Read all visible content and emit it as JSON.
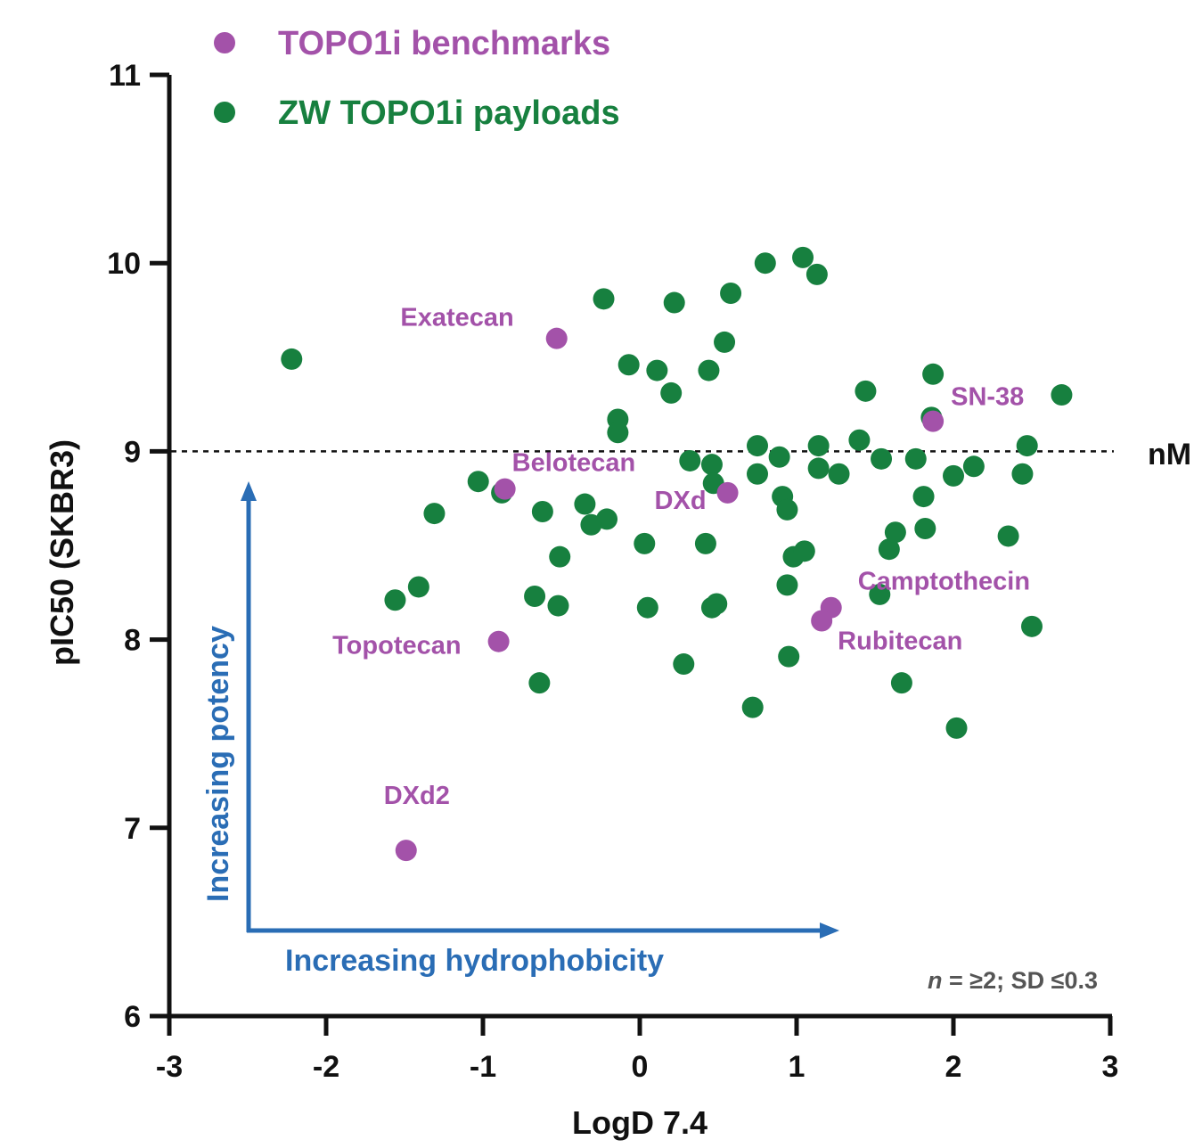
{
  "colors": {
    "benchmark": "#a352a9",
    "payload": "#17803f",
    "arrow": "#2a6db5",
    "axis": "#111111"
  },
  "chart_data": {
    "type": "scatter",
    "title": "",
    "xlabel": "LogD 7.4",
    "ylabel": "pIC50 (SKBR3)",
    "xlim": [
      -3,
      3
    ],
    "ylim": [
      6,
      11
    ],
    "x_ticks": [
      "-3",
      "-2",
      "-1",
      "0",
      "1",
      "2",
      "3"
    ],
    "y_ticks": [
      "6",
      "7",
      "8",
      "9",
      "10",
      "11"
    ],
    "legend": {
      "placement": "top-left",
      "entries": [
        "TOPO1i benchmarks",
        "ZW TOPO1i payloads"
      ]
    },
    "reference_line": {
      "y": 9,
      "label": "nM",
      "style": "dotted"
    },
    "series": [
      {
        "name": "TOPO1i benchmarks",
        "color": "#a352a9",
        "points": [
          {
            "x": -0.53,
            "y": 9.6,
            "label": "Exatecan"
          },
          {
            "x": 1.87,
            "y": 9.16,
            "label": "SN-38"
          },
          {
            "x": -0.86,
            "y": 8.8,
            "label": "Belotecan"
          },
          {
            "x": 0.56,
            "y": 8.78,
            "label": "DXd"
          },
          {
            "x": 1.22,
            "y": 8.17,
            "label": "Camptothecin"
          },
          {
            "x": 1.16,
            "y": 8.1,
            "label": "Rubitecan"
          },
          {
            "x": -0.9,
            "y": 7.99,
            "label": "Topotecan"
          },
          {
            "x": -1.49,
            "y": 6.88,
            "label": "DXd2"
          }
        ]
      },
      {
        "name": "ZW TOPO1i payloads",
        "color": "#17803f",
        "points": [
          {
            "x": -2.22,
            "y": 9.49
          },
          {
            "x": -1.03,
            "y": 8.84
          },
          {
            "x": -0.88,
            "y": 8.78
          },
          {
            "x": -1.31,
            "y": 8.67
          },
          {
            "x": -1.41,
            "y": 8.28
          },
          {
            "x": -1.56,
            "y": 8.21
          },
          {
            "x": -0.23,
            "y": 9.81
          },
          {
            "x": 0.22,
            "y": 9.79
          },
          {
            "x": 0.58,
            "y": 9.84
          },
          {
            "x": 0.8,
            "y": 10.0
          },
          {
            "x": 1.04,
            "y": 10.03
          },
          {
            "x": 1.13,
            "y": 9.94
          },
          {
            "x": 0.54,
            "y": 9.58
          },
          {
            "x": -0.07,
            "y": 9.46
          },
          {
            "x": 0.11,
            "y": 9.43
          },
          {
            "x": 0.44,
            "y": 9.43
          },
          {
            "x": 0.2,
            "y": 9.31
          },
          {
            "x": -0.14,
            "y": 9.17
          },
          {
            "x": -0.14,
            "y": 9.1
          },
          {
            "x": 0.32,
            "y": 8.95
          },
          {
            "x": 0.46,
            "y": 8.93
          },
          {
            "x": 0.47,
            "y": 8.83
          },
          {
            "x": 0.75,
            "y": 9.03
          },
          {
            "x": 0.75,
            "y": 8.88
          },
          {
            "x": 0.89,
            "y": 8.97
          },
          {
            "x": 1.14,
            "y": 9.03
          },
          {
            "x": 1.14,
            "y": 8.91
          },
          {
            "x": 1.27,
            "y": 8.88
          },
          {
            "x": 1.4,
            "y": 9.06
          },
          {
            "x": 1.44,
            "y": 9.32
          },
          {
            "x": 1.54,
            "y": 8.96
          },
          {
            "x": 1.76,
            "y": 8.96
          },
          {
            "x": 1.87,
            "y": 9.41
          },
          {
            "x": 1.86,
            "y": 9.18
          },
          {
            "x": 2.0,
            "y": 8.87
          },
          {
            "x": 2.13,
            "y": 8.92
          },
          {
            "x": 2.47,
            "y": 9.03
          },
          {
            "x": 2.44,
            "y": 8.88
          },
          {
            "x": 2.69,
            "y": 9.3
          },
          {
            "x": -0.35,
            "y": 8.72
          },
          {
            "x": -0.21,
            "y": 8.64
          },
          {
            "x": -0.31,
            "y": 8.61
          },
          {
            "x": -0.62,
            "y": 8.68
          },
          {
            "x": -0.51,
            "y": 8.44
          },
          {
            "x": 0.03,
            "y": 8.51
          },
          {
            "x": 0.42,
            "y": 8.51
          },
          {
            "x": -0.67,
            "y": 8.23
          },
          {
            "x": -0.52,
            "y": 8.18
          },
          {
            "x": 0.05,
            "y": 8.17
          },
          {
            "x": 0.46,
            "y": 8.17
          },
          {
            "x": 0.49,
            "y": 8.19
          },
          {
            "x": 0.91,
            "y": 8.76
          },
          {
            "x": 0.94,
            "y": 8.69
          },
          {
            "x": 0.98,
            "y": 8.44
          },
          {
            "x": 1.05,
            "y": 8.47
          },
          {
            "x": 0.94,
            "y": 8.29
          },
          {
            "x": 1.59,
            "y": 8.48
          },
          {
            "x": 1.63,
            "y": 8.57
          },
          {
            "x": 1.81,
            "y": 8.76
          },
          {
            "x": 1.82,
            "y": 8.59
          },
          {
            "x": 1.53,
            "y": 8.24
          },
          {
            "x": 2.35,
            "y": 8.55
          },
          {
            "x": 2.5,
            "y": 8.07
          },
          {
            "x": 0.28,
            "y": 7.87
          },
          {
            "x": 0.95,
            "y": 7.91
          },
          {
            "x": -0.64,
            "y": 7.77
          },
          {
            "x": 0.72,
            "y": 7.64
          },
          {
            "x": 1.67,
            "y": 7.77
          },
          {
            "x": 2.02,
            "y": 7.53
          }
        ]
      }
    ],
    "annotations": {
      "y_arrow_label": "Increasing potency",
      "x_arrow_label": "Increasing hydrophobicity",
      "footnote_n": "n",
      "footnote_rest": " = ≥2; SD ≤0.3"
    }
  }
}
